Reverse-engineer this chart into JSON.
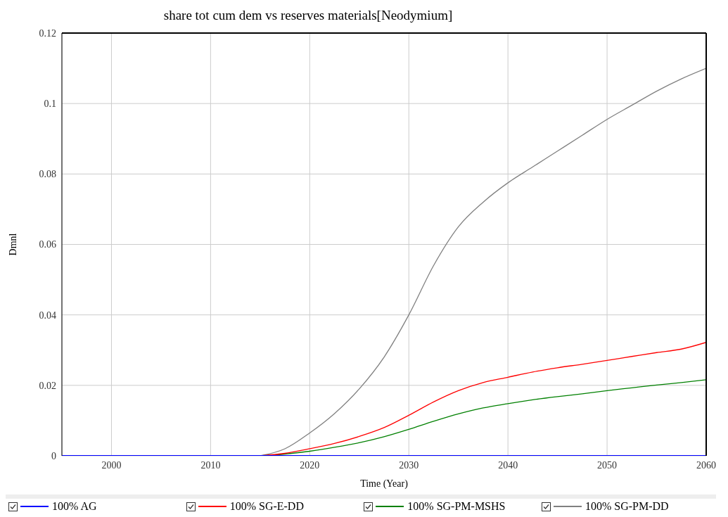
{
  "chart_data": {
    "type": "line",
    "title": "share tot cum dem vs reserves materials[Neodymium]",
    "xlabel": "Time (Year)",
    "ylabel": "Dmnl",
    "x": [
      1995,
      1997.5,
      2000,
      2002.5,
      2005,
      2007.5,
      2010,
      2012.5,
      2015,
      2017.5,
      2020,
      2022.5,
      2025,
      2027.5,
      2030,
      2032.5,
      2035,
      2037.5,
      2040,
      2042.5,
      2045,
      2047.5,
      2050,
      2052.5,
      2055,
      2057.5,
      2060
    ],
    "series": [
      {
        "name": "100% AG",
        "color": "#0000ff",
        "values": [
          0,
          0,
          0,
          0,
          0,
          0,
          0,
          0,
          0,
          0,
          0,
          0,
          0,
          0,
          0,
          0,
          0,
          0,
          0,
          0,
          0,
          0,
          0,
          0,
          0,
          0,
          0
        ]
      },
      {
        "name": "100% SG-E-DD",
        "color": "#ff0000",
        "values": [
          null,
          null,
          null,
          null,
          null,
          null,
          null,
          null,
          0,
          0.0007,
          0.002,
          0.0035,
          0.0055,
          0.008,
          0.0115,
          0.0153,
          0.0185,
          0.0208,
          0.0223,
          0.0238,
          0.025,
          0.026,
          0.0271,
          0.0282,
          0.0293,
          0.0303,
          0.0322
        ]
      },
      {
        "name": "100% SG-PM-MSHS",
        "color": "#008000",
        "values": [
          null,
          null,
          null,
          null,
          null,
          null,
          null,
          null,
          0,
          0.0005,
          0.0013,
          0.0024,
          0.0037,
          0.0054,
          0.0075,
          0.0098,
          0.0119,
          0.0136,
          0.0148,
          0.0159,
          0.0168,
          0.0176,
          0.0185,
          0.0193,
          0.0201,
          0.0208,
          0.0216
        ]
      },
      {
        "name": "100% SG-PM-DD",
        "color": "#808080",
        "values": [
          null,
          null,
          null,
          null,
          null,
          null,
          null,
          null,
          0,
          0.002,
          0.0065,
          0.012,
          0.019,
          0.028,
          0.04,
          0.054,
          0.065,
          0.072,
          0.0775,
          0.082,
          0.0865,
          0.091,
          0.0955,
          0.0995,
          0.1035,
          0.107,
          0.11
        ]
      }
    ],
    "xlim": [
      1995,
      2060
    ],
    "xticks": [
      2000,
      2010,
      2020,
      2030,
      2040,
      2050,
      2060
    ],
    "ylim": [
      0,
      0.12
    ],
    "yticks": [
      0,
      0.02,
      0.04,
      0.06,
      0.08,
      0.1,
      0.12
    ],
    "grid": true,
    "legend": "bottom",
    "marker": "none",
    "line_style": "solid"
  }
}
